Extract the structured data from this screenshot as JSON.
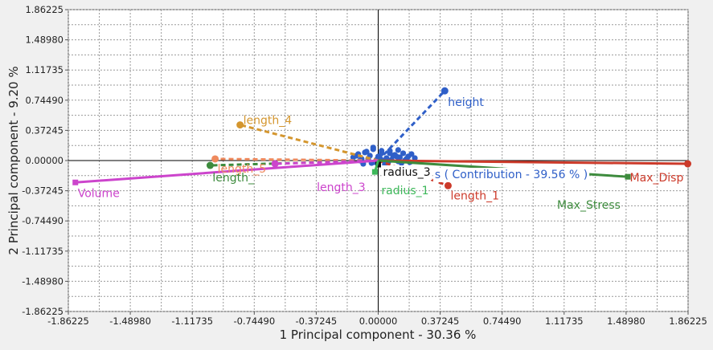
{
  "chart_data": {
    "type": "scatter",
    "title": "",
    "xlabel": "1 Principal component - 30.36 %",
    "ylabel": "2 Principal component - 9.20 %",
    "xlim": [
      -1.86225,
      1.86225
    ],
    "ylim": [
      -1.86225,
      1.86225
    ],
    "x_ticks": [
      "-1.86225",
      "-1.48980",
      "-1.11735",
      "-0.74490",
      "-0.37245",
      "0.00000",
      "0.37245",
      "0.74490",
      "1.11735",
      "1.48980",
      "1.86225"
    ],
    "y_ticks": [
      "-1.86225",
      "-1.48980",
      "-1.11735",
      "-0.74490",
      "-0.37245",
      "0.00000",
      "0.37245",
      "0.74490",
      "1.11735",
      "1.48980",
      "1.86225"
    ],
    "grid": true,
    "overlay_label": "s ( Contribution - 39.56 % )",
    "overlay_label_color": "#2f5fc8",
    "vectors": [
      {
        "name": "height",
        "color": "#2f5fc8",
        "style": "dashed",
        "x": 0.4,
        "y": 0.86
      },
      {
        "name": "length_4",
        "color": "#d4962e",
        "style": "dashed",
        "x": -0.83,
        "y": 0.44
      },
      {
        "name": "length_5",
        "color": "#ef8a5e",
        "style": "dashed",
        "x": -0.98,
        "y": 0.02
      },
      {
        "name": "length_",
        "color": "#3d8b3d",
        "style": "dashed",
        "x": -1.01,
        "y": -0.06
      },
      {
        "name": "length_3",
        "color": "#cc44cc",
        "style": "dashed",
        "x": -0.62,
        "y": -0.04
      },
      {
        "name": "Volume",
        "color": "#cc44cc",
        "style": "solid",
        "x": -1.82,
        "y": -0.27
      },
      {
        "name": "length_1",
        "color": "#cc3a2a",
        "style": "dashed",
        "x": 0.42,
        "y": -0.31
      },
      {
        "name": "Max_Disp",
        "color": "#cc3a2a",
        "style": "solid",
        "x": 1.86,
        "y": -0.04
      },
      {
        "name": "Max_Stress",
        "color": "#3d8b3d",
        "style": "solid",
        "x": 1.5,
        "y": -0.2
      },
      {
        "name": "radius_3",
        "color": "#111111",
        "style": "solid",
        "x": 0.0,
        "y": -0.05
      },
      {
        "name": "radius_1",
        "color": "#3db85a",
        "style": "solid",
        "x": -0.02,
        "y": -0.14
      }
    ],
    "points": {
      "color": "#2f5fc8",
      "x": [
        -0.15,
        -0.12,
        -0.1,
        -0.08,
        -0.05,
        -0.03,
        0.0,
        0.02,
        0.05,
        0.07,
        0.1,
        0.13,
        0.15,
        0.18,
        0.2,
        0.22,
        -0.11,
        -0.06,
        -0.02,
        0.03,
        0.08,
        0.12,
        0.17,
        -0.09,
        -0.04,
        0.01,
        0.06,
        0.11,
        0.14,
        -0.07,
        -0.01,
        0.04,
        0.09,
        0.16,
        0.19,
        -0.13,
        -0.03,
        0.02,
        0.07,
        0.12
      ],
      "y": [
        0.04,
        0.08,
        0.02,
        0.1,
        0.06,
        0.14,
        0.05,
        0.09,
        0.03,
        0.12,
        0.07,
        0.04,
        0.09,
        0.05,
        0.08,
        0.03,
        0.0,
        0.02,
        -0.02,
        0.0,
        0.01,
        -0.01,
        0.02,
        -0.04,
        -0.03,
        0.03,
        -0.02,
        0.05,
        -0.03,
        0.11,
        0.01,
        -0.05,
        0.06,
        0.0,
        -0.02,
        0.06,
        0.16,
        0.12,
        0.09,
        0.13
      ]
    }
  }
}
